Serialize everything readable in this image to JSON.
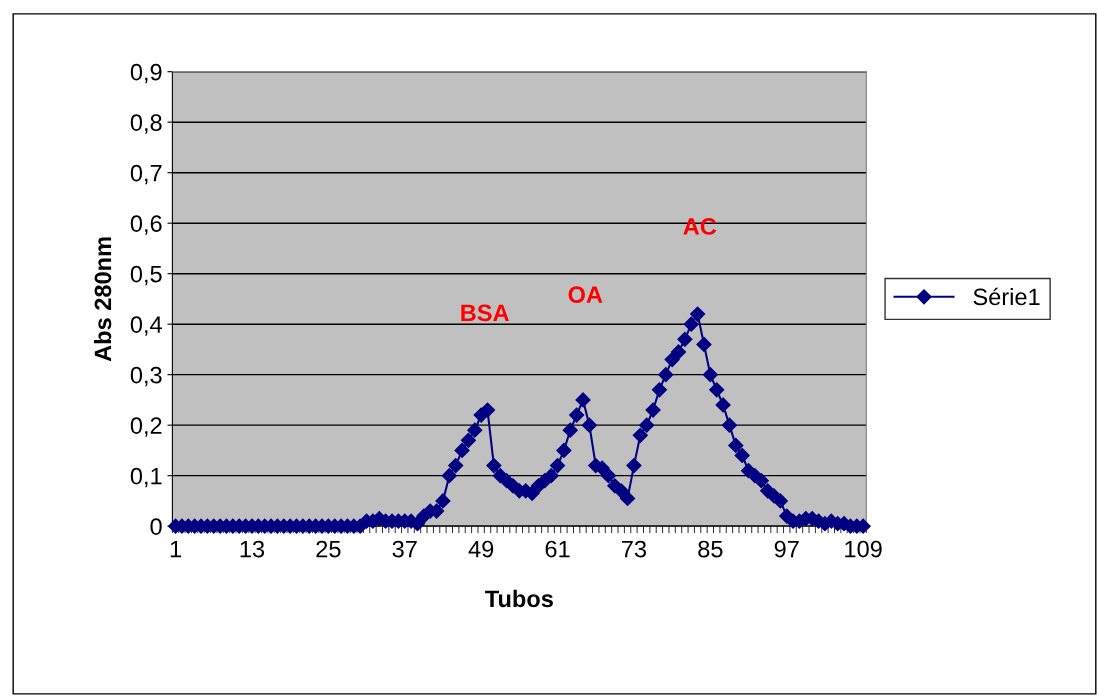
{
  "chart_data": {
    "type": "line",
    "xlabel": "Tubos",
    "ylabel": "Abs 280nm",
    "categories": [
      "1",
      null,
      null,
      null,
      null,
      null,
      null,
      null,
      null,
      null,
      null,
      null,
      "13",
      null,
      null,
      null,
      null,
      null,
      null,
      null,
      null,
      null,
      null,
      null,
      "25",
      null,
      null,
      null,
      null,
      null,
      null,
      null,
      null,
      null,
      null,
      null,
      "37",
      null,
      null,
      null,
      null,
      null,
      null,
      null,
      null,
      null,
      null,
      null,
      "49",
      null,
      null,
      null,
      null,
      null,
      null,
      null,
      null,
      null,
      null,
      null,
      "61",
      null,
      null,
      null,
      null,
      null,
      null,
      null,
      null,
      null,
      null,
      null,
      "73",
      null,
      null,
      null,
      null,
      null,
      null,
      null,
      null,
      null,
      null,
      null,
      "85",
      null,
      null,
      null,
      null,
      null,
      null,
      null,
      null,
      null,
      null,
      null,
      "97",
      null,
      null,
      null,
      null,
      null,
      null,
      null,
      null,
      null,
      null,
      null,
      "109"
    ],
    "series": [
      {
        "name": "Série1",
        "color": "#000080",
        "values": [
          0,
          0,
          0,
          0,
          0,
          0,
          0,
          0,
          0,
          0,
          0,
          0,
          0,
          0,
          0,
          0,
          0,
          0,
          0,
          0,
          0,
          0,
          0,
          0,
          0,
          0,
          0,
          0,
          0,
          0,
          0.01,
          0.01,
          0.015,
          0.01,
          0.01,
          0.01,
          0.01,
          0.01,
          0.005,
          0.02,
          0.03,
          0.03,
          0.05,
          0.1,
          0.12,
          0.15,
          0.17,
          0.19,
          0.22,
          0.23,
          0.12,
          0.1,
          0.09,
          0.08,
          0.07,
          0.07,
          0.065,
          0.08,
          0.09,
          0.1,
          0.12,
          0.15,
          0.19,
          0.22,
          0.25,
          0.2,
          0.12,
          0.115,
          0.1,
          0.08,
          0.07,
          0.055,
          0.12,
          0.18,
          0.2,
          0.23,
          0.27,
          0.3,
          0.33,
          0.345,
          0.37,
          0.4,
          0.42,
          0.36,
          0.3,
          0.27,
          0.24,
          0.2,
          0.16,
          0.14,
          0.11,
          0.1,
          0.09,
          0.07,
          0.06,
          0.05,
          0.02,
          0.01,
          0.01,
          0.015,
          0.015,
          0.01,
          0.005,
          0.01,
          0.005,
          0.005,
          0,
          0,
          0
        ]
      }
    ],
    "ylim": [
      0,
      0.9
    ],
    "yticks": [
      {
        "value": 0,
        "label": "0"
      },
      {
        "value": 0.1,
        "label": "0,1"
      },
      {
        "value": 0.2,
        "label": "0,2"
      },
      {
        "value": 0.3,
        "label": "0,3"
      },
      {
        "value": 0.4,
        "label": "0,4"
      },
      {
        "value": 0.5,
        "label": "0,5"
      },
      {
        "value": 0.6,
        "label": "0,6"
      },
      {
        "value": 0.7,
        "label": "0,7"
      },
      {
        "value": 0.8,
        "label": "0,8"
      },
      {
        "value": 0.9,
        "label": "0,9"
      }
    ],
    "annotations": [
      "BSA",
      "OA",
      "AC"
    ],
    "grid": "y",
    "legend": "right",
    "marker": "diamond"
  }
}
